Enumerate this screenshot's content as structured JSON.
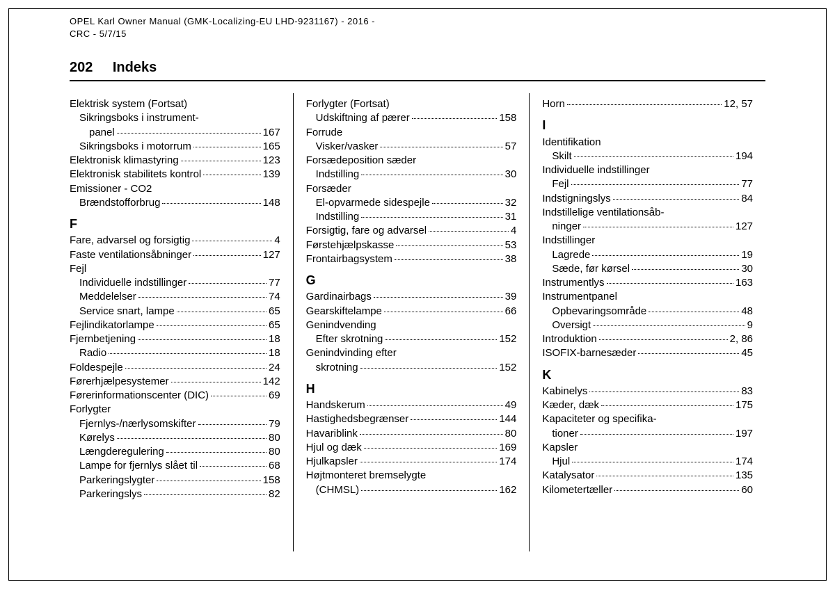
{
  "header": {
    "line1": "OPEL Karl Owner Manual (GMK-Localizing-EU LHD-9231167) - 2016 -",
    "line2": "CRC - 5/7/15"
  },
  "page_number": "202",
  "page_title": "Indeks",
  "colors": {
    "text": "#000000",
    "background": "#ffffff",
    "rule": "#000000"
  },
  "typography": {
    "body_fontsize_pt": 11,
    "title_fontsize_pt": 15,
    "header_fontsize_pt": 10,
    "font_family": "Arial"
  },
  "columns": [
    {
      "items": [
        {
          "type": "entry",
          "label": "Elektrisk system (Fortsat)",
          "page": "",
          "nopage": true
        },
        {
          "type": "entry",
          "label": "Sikringsboks i instrument-",
          "page": "",
          "sub": true,
          "nopage": true
        },
        {
          "type": "entry",
          "label": "panel",
          "page": "167",
          "sub": true,
          "extraIndent": true
        },
        {
          "type": "entry",
          "label": "Sikringsboks i motorrum",
          "page": "165",
          "sub": true
        },
        {
          "type": "entry",
          "label": "Elektronisk klimastyring",
          "page": "123"
        },
        {
          "type": "entry",
          "label": "Elektronisk stabilitets kontrol",
          "page": "139"
        },
        {
          "type": "entry",
          "label": "Emissioner - CO2",
          "page": "",
          "nopage": true
        },
        {
          "type": "entry",
          "label": "Brændstofforbrug",
          "page": "148",
          "sub": true
        },
        {
          "type": "letter",
          "label": "F"
        },
        {
          "type": "entry",
          "label": "Fare, advarsel og forsigtig",
          "page": "4"
        },
        {
          "type": "entry",
          "label": "Faste ventilationsåbninger",
          "page": "127"
        },
        {
          "type": "entry",
          "label": "Fejl",
          "page": "",
          "nopage": true
        },
        {
          "type": "entry",
          "label": "Individuelle indstillinger",
          "page": "77",
          "sub": true
        },
        {
          "type": "entry",
          "label": "Meddelelser",
          "page": "74",
          "sub": true
        },
        {
          "type": "entry",
          "label": "Service snart, lampe",
          "page": "65",
          "sub": true
        },
        {
          "type": "entry",
          "label": "Fejlindikatorlampe",
          "page": "65"
        },
        {
          "type": "entry",
          "label": "Fjernbetjening",
          "page": "18"
        },
        {
          "type": "entry",
          "label": "Radio",
          "page": "18",
          "sub": true
        },
        {
          "type": "entry",
          "label": "Foldespejle",
          "page": "24"
        },
        {
          "type": "entry",
          "label": "Førerhjælpesystemer",
          "page": "142"
        },
        {
          "type": "entry",
          "label": "Førerinformationscenter (DIC)",
          "page": "69"
        },
        {
          "type": "entry",
          "label": "Forlygter",
          "page": "",
          "nopage": true
        },
        {
          "type": "entry",
          "label": "Fjernlys-/nærlysomskifter",
          "page": "79",
          "sub": true
        },
        {
          "type": "entry",
          "label": "Kørelys",
          "page": "80",
          "sub": true
        },
        {
          "type": "entry",
          "label": "Længderegulering",
          "page": "80",
          "sub": true
        },
        {
          "type": "entry",
          "label": "Lampe for fjernlys slået til",
          "page": "68",
          "sub": true
        },
        {
          "type": "entry",
          "label": "Parkeringslygter",
          "page": "158",
          "sub": true
        },
        {
          "type": "entry",
          "label": "Parkeringslys",
          "page": "82",
          "sub": true
        }
      ]
    },
    {
      "items": [
        {
          "type": "entry",
          "label": "Forlygter (Fortsat)",
          "page": "",
          "nopage": true
        },
        {
          "type": "entry",
          "label": "Udskiftning af pærer",
          "page": "158",
          "sub": true
        },
        {
          "type": "entry",
          "label": "Forrude",
          "page": "",
          "nopage": true
        },
        {
          "type": "entry",
          "label": "Visker/vasker",
          "page": "57",
          "sub": true
        },
        {
          "type": "entry",
          "label": "Forsædeposition sæder",
          "page": "",
          "nopage": true
        },
        {
          "type": "entry",
          "label": "Indstilling",
          "page": "30",
          "sub": true
        },
        {
          "type": "entry",
          "label": "Forsæder",
          "page": "",
          "nopage": true
        },
        {
          "type": "entry",
          "label": "El-opvarmede sidespejle",
          "page": "32",
          "sub": true
        },
        {
          "type": "entry",
          "label": "Indstilling",
          "page": "31",
          "sub": true
        },
        {
          "type": "entry",
          "label": "Forsigtig, fare og advarsel",
          "page": "4"
        },
        {
          "type": "entry",
          "label": "Førstehjælpskasse",
          "page": "53"
        },
        {
          "type": "entry",
          "label": "Frontairbagsystem",
          "page": "38"
        },
        {
          "type": "letter",
          "label": "G"
        },
        {
          "type": "entry",
          "label": "Gardinairbags",
          "page": "39"
        },
        {
          "type": "entry",
          "label": "Gearskiftelampe",
          "page": "66"
        },
        {
          "type": "entry",
          "label": "Genindvending",
          "page": "",
          "nopage": true
        },
        {
          "type": "entry",
          "label": "Efter skrotning",
          "page": "152",
          "sub": true
        },
        {
          "type": "entry",
          "label": "Genindvinding efter",
          "page": "",
          "nopage": true
        },
        {
          "type": "entry",
          "label": "skrotning",
          "page": "152",
          "sub": true
        },
        {
          "type": "letter",
          "label": "H"
        },
        {
          "type": "entry",
          "label": "Handskerum",
          "page": "49"
        },
        {
          "type": "entry",
          "label": "Hastighedsbegrænser",
          "page": "144"
        },
        {
          "type": "entry",
          "label": "Havariblink",
          "page": "80"
        },
        {
          "type": "entry",
          "label": "Hjul og dæk",
          "page": "169"
        },
        {
          "type": "entry",
          "label": "Hjulkapsler",
          "page": "174"
        },
        {
          "type": "entry",
          "label": "Højtmonteret bremselygte",
          "page": "",
          "nopage": true
        },
        {
          "type": "entry",
          "label": "(CHMSL)",
          "page": "162",
          "sub": true
        }
      ]
    },
    {
      "items": [
        {
          "type": "entry",
          "label": "Horn",
          "page": "12, 57"
        },
        {
          "type": "letter",
          "label": "I"
        },
        {
          "type": "entry",
          "label": "Identifikation",
          "page": "",
          "nopage": true
        },
        {
          "type": "entry",
          "label": "Skilt",
          "page": "194",
          "sub": true
        },
        {
          "type": "entry",
          "label": "Individuelle indstillinger",
          "page": "",
          "nopage": true
        },
        {
          "type": "entry",
          "label": "Fejl",
          "page": "77",
          "sub": true
        },
        {
          "type": "entry",
          "label": "Indstigningslys",
          "page": "84"
        },
        {
          "type": "entry",
          "label": "Indstillelige ventilationsåb-",
          "page": "",
          "nopage": true
        },
        {
          "type": "entry",
          "label": "ninger",
          "page": "127",
          "sub": true
        },
        {
          "type": "entry",
          "label": "Indstillinger",
          "page": "",
          "nopage": true
        },
        {
          "type": "entry",
          "label": "Lagrede",
          "page": "19",
          "sub": true
        },
        {
          "type": "entry",
          "label": "Sæde, før kørsel",
          "page": "30",
          "sub": true
        },
        {
          "type": "entry",
          "label": "Instrumentlys",
          "page": "163"
        },
        {
          "type": "entry",
          "label": "Instrumentpanel",
          "page": "",
          "nopage": true
        },
        {
          "type": "entry",
          "label": "Opbevaringsområde",
          "page": "48",
          "sub": true
        },
        {
          "type": "entry",
          "label": "Oversigt",
          "page": "9",
          "sub": true
        },
        {
          "type": "entry",
          "label": "Introduktion",
          "page": "2, 86"
        },
        {
          "type": "entry",
          "label": "ISOFIX-barnesæder",
          "page": "45"
        },
        {
          "type": "letter",
          "label": "K"
        },
        {
          "type": "entry",
          "label": "Kabinelys",
          "page": "83"
        },
        {
          "type": "entry",
          "label": "Kæder, dæk",
          "page": "175"
        },
        {
          "type": "entry",
          "label": "Kapaciteter og specifika-",
          "page": "",
          "nopage": true
        },
        {
          "type": "entry",
          "label": "tioner",
          "page": "197",
          "sub": true
        },
        {
          "type": "entry",
          "label": "Kapsler",
          "page": "",
          "nopage": true
        },
        {
          "type": "entry",
          "label": "Hjul",
          "page": "174",
          "sub": true
        },
        {
          "type": "entry",
          "label": "Katalysator",
          "page": "135"
        },
        {
          "type": "entry",
          "label": "Kilometertæller",
          "page": "60"
        }
      ]
    }
  ]
}
